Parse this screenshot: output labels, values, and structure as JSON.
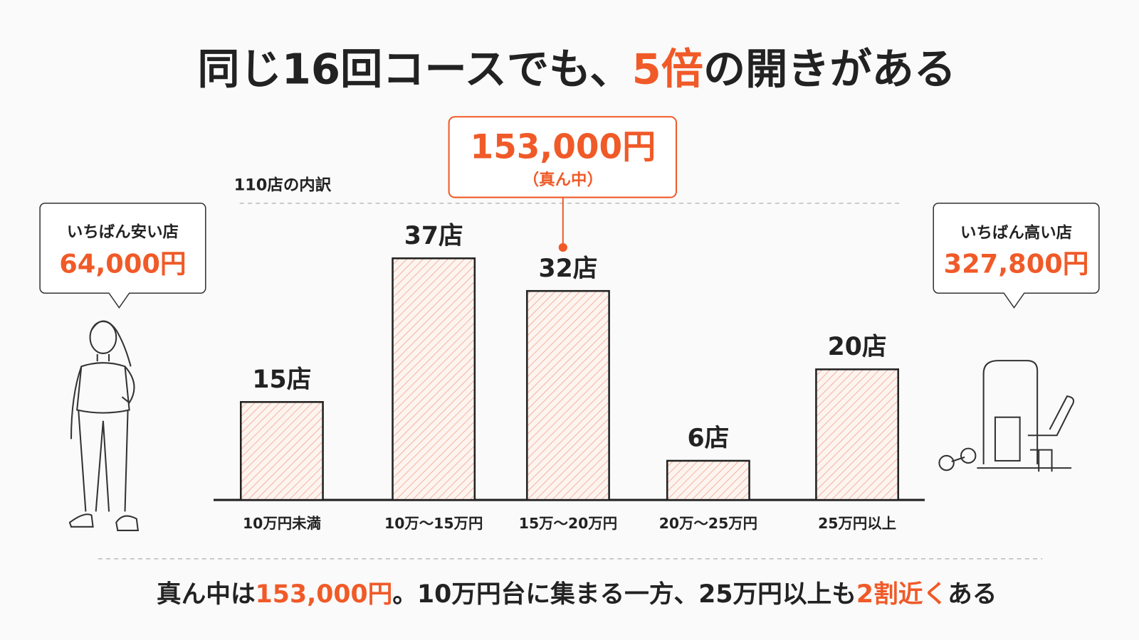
{
  "chart_data": {
    "type": "bar",
    "title": {
      "before": "同じ16回コースでも、",
      "highlight": "5倍",
      "after": "の開きがある"
    },
    "subtitle": "110店の内訳",
    "categories": [
      "10万円未満",
      "10万～15万円",
      "15万～20万円",
      "20万～25万円",
      "25万円以上"
    ],
    "values": [
      15,
      37,
      32,
      6,
      20
    ],
    "value_labels": [
      "15店",
      "37店",
      "32店",
      "6店",
      "20店"
    ],
    "color": "#f05a28",
    "median_callout": {
      "amount": "153,000円",
      "label": "（真ん中）"
    },
    "cheapest": {
      "label": "いちばん安い店",
      "amount": "64,000円"
    },
    "most_expensive": {
      "label": "いちばん高い店",
      "amount": "327,800円"
    },
    "note": [
      "真ん中は",
      "153,000円",
      "。10万円台に集まる一方、25万円以上も",
      "2割近く",
      "ある"
    ]
  }
}
